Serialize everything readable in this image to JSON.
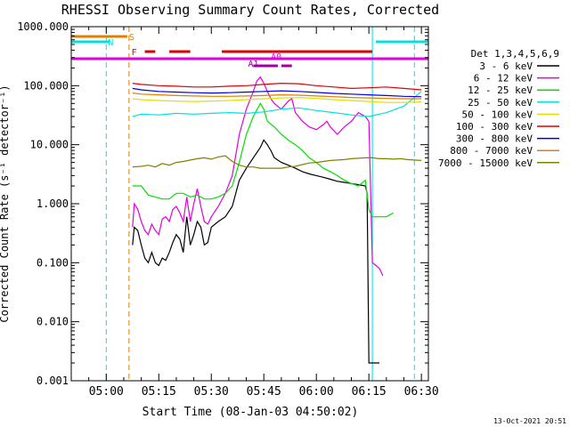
{
  "chart_data": {
    "type": "line",
    "title": "RHESSI Observing Summary Count Rates, Corrected",
    "xlabel": "Start Time (08-Jan-03 04:50:02)",
    "ylabel": "Corrected Count Rate (s⁻¹ detector⁻¹)",
    "yscale": "log",
    "ylim": [
      0.001,
      1000
    ],
    "xlim_minutes": [
      0,
      102
    ],
    "x_tick_labels": [
      "05:00",
      "05:15",
      "05:30",
      "05:45",
      "06:00",
      "06:15",
      "06:30"
    ],
    "x_tick_minutes": [
      10,
      25,
      40,
      55,
      70,
      85,
      100
    ],
    "y_tick_labels": [
      "1000.000",
      "100.000",
      "10.000",
      "1.000",
      "0.100",
      "0.010",
      "0.001"
    ],
    "y_tick_values": [
      1000,
      100,
      10,
      1,
      0.1,
      0.01,
      0.001
    ],
    "legend_title": "Det 1,3,4,5,6,9",
    "legend_position": "right",
    "series": [
      {
        "name": "3 - 6 keV",
        "color": "#000000",
        "x": [
          17.5,
          18,
          19,
          20,
          21,
          22,
          23,
          24,
          25,
          26,
          27,
          28,
          29,
          30,
          31,
          32,
          33,
          34,
          35,
          36,
          37,
          38,
          39,
          40,
          42,
          44,
          46,
          48,
          50,
          52,
          54,
          55,
          56,
          57,
          58,
          60,
          62,
          64,
          66,
          68,
          70,
          72,
          74,
          76,
          78,
          80,
          82,
          84,
          84.5,
          85,
          85.5,
          86,
          87,
          88
        ],
        "y": [
          0.2,
          0.4,
          0.35,
          0.2,
          0.12,
          0.1,
          0.15,
          0.1,
          0.09,
          0.12,
          0.11,
          0.15,
          0.22,
          0.3,
          0.25,
          0.15,
          0.6,
          0.2,
          0.3,
          0.5,
          0.4,
          0.2,
          0.22,
          0.4,
          0.5,
          0.6,
          0.9,
          2.5,
          4,
          6,
          9,
          12,
          10,
          8,
          6,
          5,
          4.5,
          4,
          3.5,
          3.2,
          3,
          2.8,
          2.6,
          2.4,
          2.3,
          2.2,
          2.1,
          2,
          1.5,
          0.002,
          0.002,
          0.002,
          0.002,
          0.002
        ]
      },
      {
        "name": "6 - 12 keV",
        "color": "#e000e0",
        "x": [
          17.5,
          18,
          19,
          20,
          21,
          22,
          23,
          24,
          25,
          26,
          27,
          28,
          29,
          30,
          31,
          32,
          33,
          34,
          35,
          36,
          37,
          38,
          39,
          40,
          42,
          44,
          46,
          48,
          50,
          52,
          53,
          54,
          55,
          56,
          57,
          58,
          60,
          62,
          63,
          64,
          66,
          68,
          70,
          72,
          73,
          74,
          76,
          78,
          80,
          82,
          84,
          85,
          86,
          87,
          88,
          89
        ],
        "y": [
          0.4,
          1,
          0.8,
          0.5,
          0.35,
          0.3,
          0.45,
          0.35,
          0.3,
          0.55,
          0.6,
          0.5,
          0.8,
          0.9,
          0.7,
          0.5,
          1.3,
          0.5,
          1,
          1.8,
          0.9,
          0.5,
          0.45,
          0.6,
          0.9,
          1.5,
          3,
          15,
          40,
          80,
          120,
          140,
          110,
          80,
          60,
          50,
          40,
          55,
          60,
          35,
          25,
          20,
          18,
          22,
          25,
          20,
          15,
          20,
          25,
          35,
          30,
          25,
          0.1,
          0.09,
          0.08,
          0.06
        ]
      },
      {
        "name": "12 - 25 keV",
        "color": "#00e000",
        "x": [
          17.5,
          20,
          22,
          24,
          26,
          28,
          30,
          32,
          34,
          36,
          38,
          40,
          42,
          44,
          46,
          48,
          50,
          52,
          54,
          55,
          56,
          58,
          60,
          62,
          64,
          66,
          68,
          70,
          72,
          74,
          76,
          78,
          80,
          82,
          84,
          85,
          86,
          88,
          90,
          92
        ],
        "y": [
          2,
          2,
          1.4,
          1.3,
          1.2,
          1.2,
          1.5,
          1.5,
          1.3,
          1.4,
          1.2,
          1.2,
          1.3,
          1.5,
          2,
          5,
          15,
          30,
          50,
          40,
          25,
          20,
          15,
          12,
          10,
          8,
          6,
          5,
          4,
          3.5,
          3,
          2.5,
          2.2,
          2,
          2.5,
          0.8,
          0.6,
          0.6,
          0.6,
          0.7
        ]
      },
      {
        "name": "25 - 50 keV",
        "color": "#00e0e0",
        "x": [
          17.5,
          20,
          25,
          30,
          35,
          40,
          45,
          50,
          55,
          60,
          65,
          70,
          75,
          80,
          85,
          90,
          95,
          100
        ],
        "y": [
          30,
          33,
          32,
          34,
          33,
          34,
          35,
          34,
          36,
          40,
          42,
          38,
          35,
          32,
          30,
          35,
          45,
          80
        ]
      },
      {
        "name": "50 - 100 keV",
        "color": "#e0e000",
        "x": [
          17.5,
          20,
          25,
          30,
          35,
          40,
          45,
          50,
          55,
          60,
          65,
          70,
          75,
          80,
          85,
          90,
          95,
          100
        ],
        "y": [
          60,
          58,
          56,
          55,
          54,
          55,
          56,
          58,
          60,
          62,
          63,
          61,
          58,
          56,
          54,
          52,
          52,
          53
        ]
      },
      {
        "name": "100 - 300 keV",
        "color": "#e00000",
        "x": [
          17.5,
          20,
          25,
          30,
          35,
          40,
          45,
          50,
          55,
          60,
          65,
          70,
          75,
          80,
          85,
          90,
          95,
          100
        ],
        "y": [
          110,
          105,
          100,
          98,
          95,
          95,
          98,
          100,
          105,
          110,
          108,
          100,
          95,
          90,
          92,
          95,
          90,
          85
        ]
      },
      {
        "name": "300 - 800 keV",
        "color": "#0000e0",
        "x": [
          17.5,
          20,
          25,
          30,
          35,
          40,
          45,
          50,
          55,
          60,
          65,
          70,
          75,
          80,
          85,
          90,
          95,
          100
        ],
        "y": [
          90,
          85,
          80,
          78,
          76,
          75,
          76,
          78,
          80,
          82,
          80,
          77,
          74,
          72,
          70,
          68,
          66,
          65
        ]
      },
      {
        "name": "800 - 7000 keV",
        "color": "#e08000",
        "x": [
          17.5,
          20,
          25,
          30,
          35,
          40,
          45,
          50,
          55,
          60,
          65,
          70,
          75,
          80,
          85,
          90,
          95,
          100
        ],
        "y": [
          75,
          72,
          70,
          68,
          67,
          66,
          66,
          67,
          68,
          70,
          69,
          67,
          65,
          63,
          62,
          61,
          60,
          60
        ]
      },
      {
        "name": "7000 - 15000 keV",
        "color": "#808000",
        "x": [
          17.5,
          20,
          22,
          24,
          26,
          28,
          30,
          32,
          34,
          36,
          38,
          40,
          42,
          44,
          46,
          48,
          50,
          52,
          54,
          56,
          58,
          60,
          62,
          64,
          66,
          68,
          70,
          72,
          74,
          76,
          78,
          80,
          82,
          84,
          86,
          88,
          90,
          92,
          94,
          96,
          98,
          100
        ],
        "y": [
          4.2,
          4.3,
          4.5,
          4.2,
          4.8,
          4.5,
          5,
          5.2,
          5.5,
          5.8,
          6,
          5.7,
          6.2,
          6.5,
          5.2,
          4.5,
          4.2,
          4.2,
          4,
          4,
          4,
          4,
          4.2,
          4.3,
          4.6,
          4.9,
          5,
          5.2,
          5.4,
          5.5,
          5.6,
          5.8,
          5.9,
          6,
          6,
          5.8,
          5.8,
          5.7,
          5.8,
          5.6,
          5.5,
          5.4
        ]
      }
    ],
    "flag_bars": [
      {
        "label": "S",
        "color": "#e08000",
        "segments": [
          [
            0,
            16
          ]
        ]
      },
      {
        "label": "N",
        "color": "#00e0e0",
        "segments": [
          [
            0,
            11
          ],
          [
            87,
            102
          ]
        ]
      },
      {
        "label": "F",
        "color": "#e00000",
        "segments": [
          [
            21,
            24
          ],
          [
            28,
            34
          ],
          [
            43,
            86
          ]
        ]
      },
      {
        "label": "A0",
        "color": "#e000e0",
        "segments": [
          [
            0,
            102
          ]
        ]
      },
      {
        "label": "A1",
        "color": "#a000a0",
        "segments": [
          [
            52,
            59
          ],
          [
            60,
            63
          ]
        ]
      }
    ],
    "vertical_markers": [
      {
        "minute": 10,
        "color": "#00e0e0",
        "style": "dashed"
      },
      {
        "minute": 16.5,
        "color": "#e08000",
        "style": "dashed"
      },
      {
        "minute": 86,
        "color": "#00e0e0",
        "style": "solid"
      },
      {
        "minute": 98,
        "color": "#00e0e0",
        "style": "dashed"
      }
    ]
  },
  "footer_date": "13-Oct-2021 20:51"
}
